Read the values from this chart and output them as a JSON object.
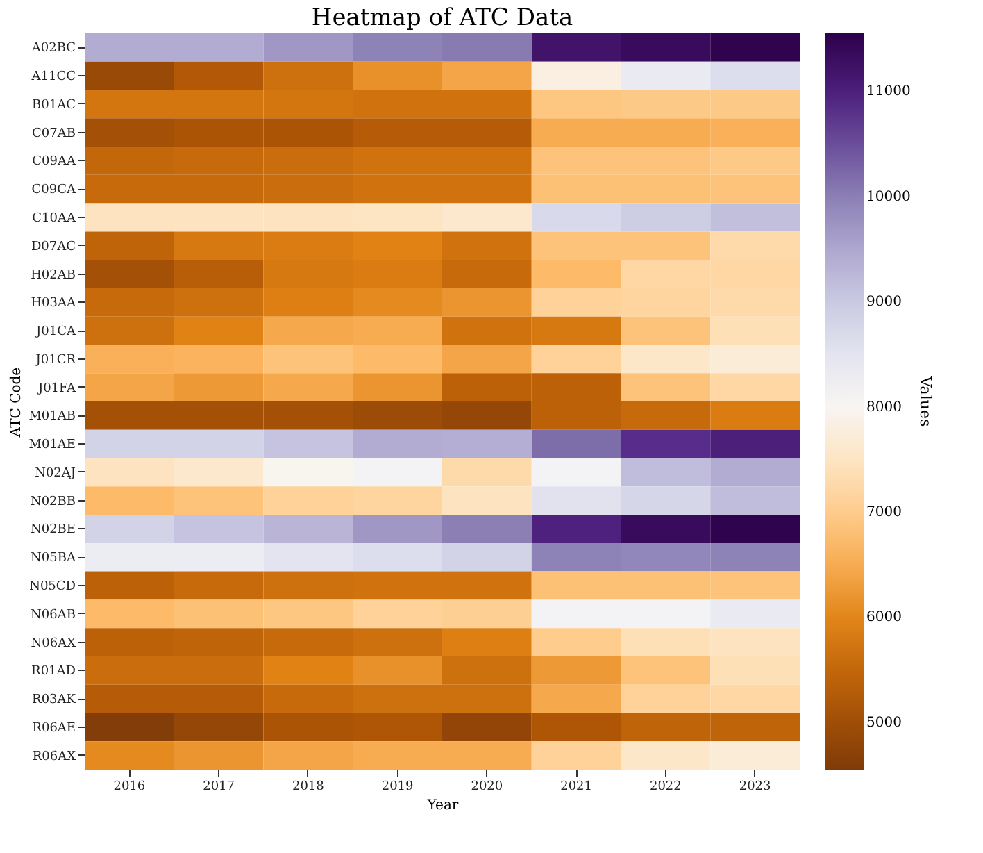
{
  "chart_data": {
    "type": "heatmap",
    "title": "Heatmap of ATC Data",
    "xlabel": "Year",
    "ylabel": "ATC Code",
    "clabel": "Values",
    "categories": [
      "2016",
      "2017",
      "2018",
      "2019",
      "2020",
      "2021",
      "2022",
      "2023"
    ],
    "y_categories": [
      "A02BC",
      "A11CC",
      "B01AC",
      "C07AB",
      "C09AA",
      "C09CA",
      "C10AA",
      "D07AC",
      "H02AB",
      "H03AA",
      "J01CA",
      "J01CR",
      "J01FA",
      "M01AB",
      "M01AE",
      "N02AJ",
      "N02BB",
      "N02BE",
      "N05BA",
      "N05CD",
      "N06AB",
      "N06AX",
      "R01AD",
      "R03AK",
      "R06AE",
      "R06AX"
    ],
    "cells": [
      [
        9450,
        9450,
        9700,
        9950,
        10050,
        11200,
        11350,
        11500
      ],
      [
        4900,
        5250,
        5650,
        6150,
        6400,
        7800,
        8350,
        8650
      ],
      [
        5750,
        5750,
        5750,
        5700,
        5700,
        6900,
        6950,
        6950
      ],
      [
        5050,
        5150,
        5150,
        5300,
        5300,
        6500,
        6500,
        6550
      ],
      [
        5500,
        5550,
        5600,
        5700,
        5700,
        6850,
        6850,
        6950
      ],
      [
        5550,
        5550,
        5600,
        5700,
        5700,
        6800,
        6800,
        6850
      ],
      [
        7450,
        7450,
        7450,
        7500,
        7600,
        8750,
        8950,
        9150
      ],
      [
        5450,
        5800,
        5850,
        5950,
        5700,
        6850,
        6850,
        7250
      ],
      [
        5050,
        5350,
        5800,
        5850,
        5550,
        6700,
        7200,
        7200
      ],
      [
        5550,
        5650,
        5900,
        6050,
        6200,
        7100,
        7150,
        7250
      ],
      [
        5650,
        5950,
        6450,
        6500,
        5700,
        5800,
        6850,
        7350
      ],
      [
        6550,
        6600,
        6850,
        6700,
        6400,
        7100,
        7550,
        7700
      ],
      [
        6400,
        6250,
        6450,
        6200,
        5400,
        5400,
        6850,
        7200
      ],
      [
        5050,
        5050,
        5050,
        4950,
        4850,
        5400,
        5550,
        5850
      ],
      [
        8850,
        8850,
        9100,
        9450,
        9400,
        10200,
        10800,
        11000
      ],
      [
        7450,
        7600,
        7950,
        8150,
        7250,
        8150,
        9200,
        9450
      ],
      [
        6700,
        6850,
        7100,
        7150,
        7450,
        8550,
        8800,
        9200
      ],
      [
        8850,
        9100,
        9300,
        9700,
        10000,
        10950,
        11350,
        11500
      ],
      [
        8300,
        8300,
        8500,
        8650,
        8850,
        9950,
        9900,
        9950
      ],
      [
        5400,
        5550,
        5650,
        5700,
        5700,
        6800,
        6800,
        6850
      ],
      [
        6700,
        6800,
        6900,
        7100,
        7050,
        8150,
        8150,
        8350
      ],
      [
        5400,
        5450,
        5550,
        5650,
        5900,
        7000,
        7350,
        7450
      ],
      [
        5600,
        5600,
        5950,
        6150,
        5650,
        6250,
        6850,
        7350
      ],
      [
        5300,
        5300,
        5550,
        5650,
        5650,
        6450,
        7100,
        7200
      ],
      [
        4600,
        4850,
        5150,
        5200,
        4800,
        5200,
        5450,
        5450
      ],
      [
        6050,
        6200,
        6400,
        6500,
        6500,
        7100,
        7550,
        7700
      ]
    ],
    "clim": [
      4550,
      11550
    ],
    "cticks": [
      5000,
      6000,
      7000,
      8000,
      9000,
      10000,
      11000
    ]
  }
}
